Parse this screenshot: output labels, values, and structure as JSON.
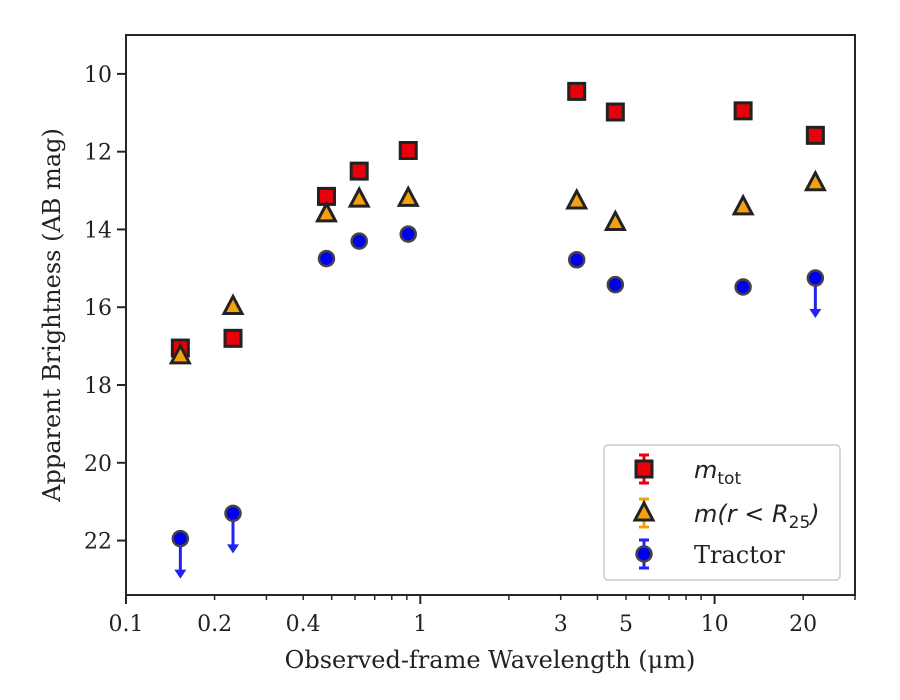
{
  "chart_data": {
    "type": "scatter",
    "xlabel": "Observed-frame Wavelength (μm)",
    "ylabel": "Apparent Brightness (AB mag)",
    "x_scale": "log",
    "xlim": [
      0.1,
      30
    ],
    "ylim": [
      23.4,
      9.0
    ],
    "y_inverted": true,
    "grid": false,
    "legend_position": "bottom-right",
    "x_ticks": [
      {
        "value": 0.1,
        "label": "0.1"
      },
      {
        "value": 0.2,
        "label": "0.2"
      },
      {
        "value": 0.4,
        "label": "0.4"
      },
      {
        "value": 1,
        "label": "1"
      },
      {
        "value": 3,
        "label": "3"
      },
      {
        "value": 5,
        "label": "5"
      },
      {
        "value": 10,
        "label": "10"
      },
      {
        "value": 20,
        "label": "20"
      }
    ],
    "y_ticks": [
      {
        "value": 10,
        "label": "10"
      },
      {
        "value": 12,
        "label": "12"
      },
      {
        "value": 14,
        "label": "14"
      },
      {
        "value": 16,
        "label": "16"
      },
      {
        "value": 18,
        "label": "18"
      },
      {
        "value": 20,
        "label": "20"
      },
      {
        "value": 22,
        "label": "22"
      }
    ],
    "series": [
      {
        "name": "m_tot",
        "legend_label": {
          "main": "m",
          "sub": "tot"
        },
        "marker": "square",
        "color": "#e8000b",
        "edge_color": "#222222",
        "errorbar_color": "#e8000b",
        "points": [
          {
            "x": 0.153,
            "y": 17.05
          },
          {
            "x": 0.231,
            "y": 16.8
          },
          {
            "x": 0.48,
            "y": 13.15
          },
          {
            "x": 0.62,
            "y": 12.5
          },
          {
            "x": 0.91,
            "y": 11.97
          },
          {
            "x": 3.4,
            "y": 10.45
          },
          {
            "x": 4.6,
            "y": 10.98
          },
          {
            "x": 12.5,
            "y": 10.95
          },
          {
            "x": 22.0,
            "y": 11.58
          }
        ]
      },
      {
        "name": "m(r < R25)",
        "legend_label": {
          "main": "m(r < R",
          "sub": "25",
          "tail": ")"
        },
        "marker": "triangle",
        "color": "#f5a10f",
        "edge_color": "#222222",
        "errorbar_color": "#f5a10f",
        "points": [
          {
            "x": 0.153,
            "y": 17.25
          },
          {
            "x": 0.231,
            "y": 15.98
          },
          {
            "x": 0.48,
            "y": 13.6
          },
          {
            "x": 0.62,
            "y": 13.22
          },
          {
            "x": 0.91,
            "y": 13.2
          },
          {
            "x": 3.4,
            "y": 13.27
          },
          {
            "x": 4.6,
            "y": 13.82
          },
          {
            "x": 12.5,
            "y": 13.42
          },
          {
            "x": 22.0,
            "y": 12.8
          }
        ]
      },
      {
        "name": "Tractor",
        "legend_label": {
          "main": "Tractor"
        },
        "marker": "circle",
        "color": "#0000ee",
        "edge_color": "#444444",
        "errorbar_color": "#2323f0",
        "points": [
          {
            "x": 0.153,
            "y": 21.95,
            "upper_limit": true
          },
          {
            "x": 0.231,
            "y": 21.3,
            "upper_limit": true
          },
          {
            "x": 0.48,
            "y": 14.75
          },
          {
            "x": 0.62,
            "y": 14.3
          },
          {
            "x": 0.91,
            "y": 14.12
          },
          {
            "x": 3.4,
            "y": 14.78
          },
          {
            "x": 4.6,
            "y": 15.42
          },
          {
            "x": 12.5,
            "y": 15.48
          },
          {
            "x": 22.0,
            "y": 15.25,
            "upper_limit": true
          }
        ]
      }
    ]
  }
}
